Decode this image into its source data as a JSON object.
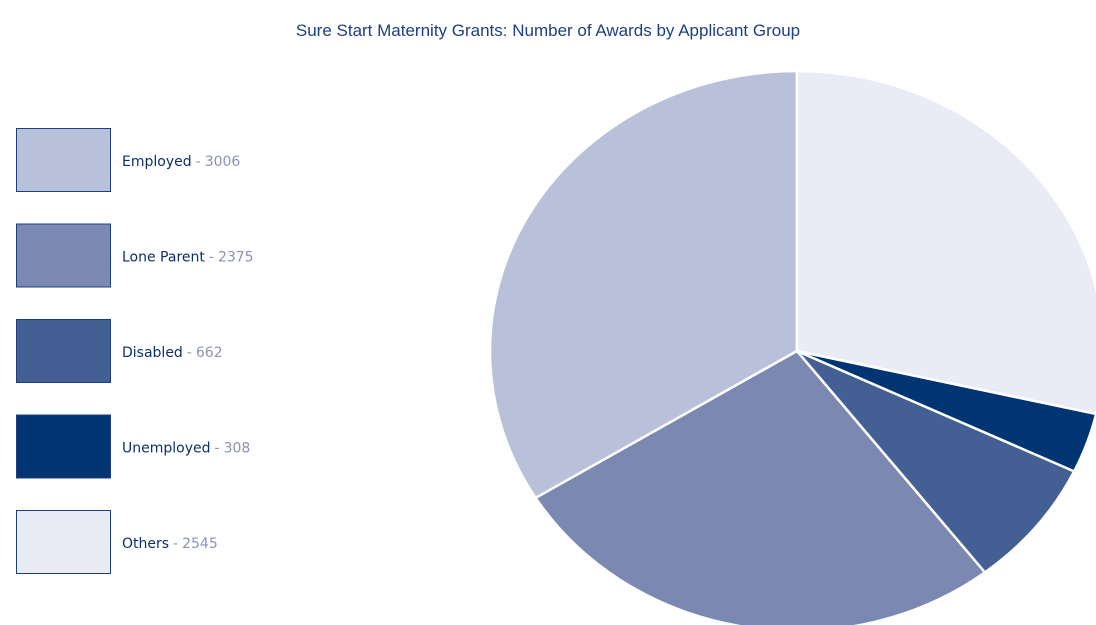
{
  "chart_data": {
    "type": "pie",
    "title": "Sure Start Maternity Grants:  Number of Awards by Applicant Group",
    "categories": [
      "Employed",
      "Lone Parent",
      "Disabled",
      "Unemployed",
      "Others"
    ],
    "values": [
      3006,
      2375,
      662,
      308,
      2545
    ],
    "colors": [
      "#b9c0d9",
      "#7a88b2",
      "#445f93",
      "#003473",
      "#e9ecf4"
    ],
    "legend": "left"
  }
}
